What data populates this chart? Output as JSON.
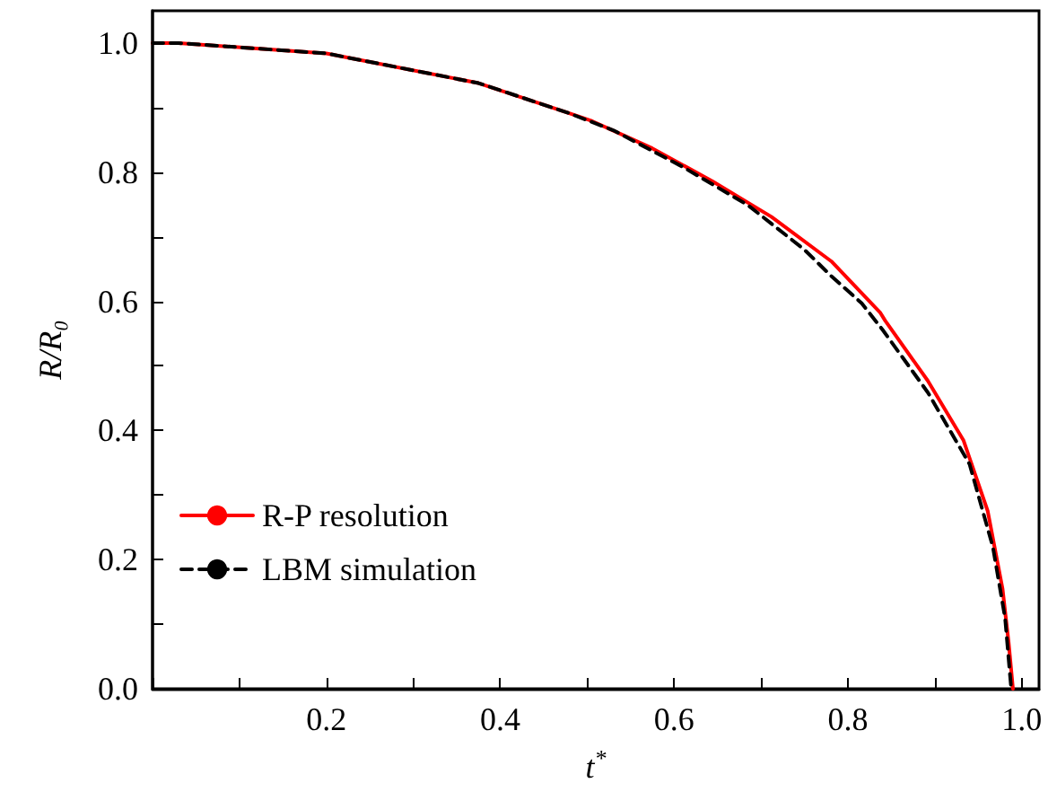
{
  "chart_data": {
    "type": "line",
    "xlabel": "t$^{*}$",
    "ylabel": "R/R₀",
    "xlim": [
      0,
      1.02
    ],
    "ylim": [
      0,
      1.05
    ],
    "xticks": [
      {
        "value": 0,
        "label": null
      },
      {
        "value": 0.1,
        "label": null
      },
      0.2,
      {
        "value": 0.3,
        "label": null
      },
      0.4,
      {
        "value": 0.5,
        "label": null
      },
      0.6,
      {
        "value": 0.7,
        "label": null
      },
      0.8,
      {
        "value": 0.9,
        "label": null
      },
      {
        "value": 1,
        "label": "1.0"
      }
    ],
    "yticks": [
      {
        "value": 0,
        "label": "0.0"
      },
      {
        "value": 0.1,
        "label": null
      },
      0.2,
      {
        "value": 0.3,
        "label": null
      },
      0.4,
      {
        "value": 0.5,
        "label": null
      },
      0.6,
      {
        "value": 0.7,
        "label": null
      },
      0.8,
      {
        "value": 0.9,
        "label": null
      },
      {
        "value": 1,
        "label": "1.0"
      }
    ],
    "grid": false,
    "legend": "bottom left",
    "marker": "none",
    "series": [
      {
        "name": "R-P resolution",
        "color": "#ff0000",
        "line_style": "solid",
        "x": [
          0,
          0.03,
          0.2,
          0.375,
          0.478,
          0.506,
          0.547,
          0.575,
          0.644,
          0.712,
          0.781,
          0.837,
          0.843,
          0.892,
          0.933,
          0.961,
          0.978,
          0.985,
          0.99
        ],
        "values": [
          1.0,
          1.0,
          0.984,
          0.938,
          0.892,
          0.879,
          0.854,
          0.837,
          0.786,
          0.731,
          0.662,
          0.583,
          0.57,
          0.477,
          0.385,
          0.275,
          0.155,
          0.072,
          0
        ]
      },
      {
        "name": "LBM simulation",
        "color": "#000000",
        "line_style": "dashed",
        "x": [
          0,
          0.03,
          0.2,
          0.375,
          0.478,
          0.53,
          0.609,
          0.685,
          0.75,
          0.781,
          0.816,
          0.84,
          0.892,
          0.94,
          0.967,
          0.981,
          0.988
        ],
        "values": [
          1.0,
          1.0,
          0.984,
          0.938,
          0.892,
          0.865,
          0.809,
          0.749,
          0.68,
          0.639,
          0.597,
          0.556,
          0.459,
          0.348,
          0.219,
          0.109,
          0
        ]
      }
    ]
  }
}
